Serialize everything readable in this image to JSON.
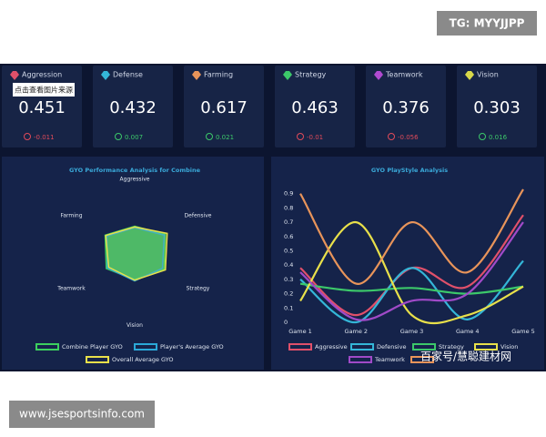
{
  "badge": "TG: MYYJJPP",
  "tooltip": "点击查看图片来源",
  "stats": [
    {
      "name": "Aggression",
      "value": 0.451,
      "delta": -0.011,
      "color": "#e0506a"
    },
    {
      "name": "Defense",
      "value": 0.432,
      "delta": 0.007,
      "color": "#34b6d8"
    },
    {
      "name": "Farming",
      "value": 0.617,
      "delta": 0.021,
      "color": "#e8945a"
    },
    {
      "name": "Strategy",
      "value": 0.463,
      "delta": -0.01,
      "color": "#3cc86a"
    },
    {
      "name": "Teamwork",
      "value": 0.376,
      "delta": -0.056,
      "color": "#b04ad0"
    },
    {
      "name": "Vision",
      "value": 0.303,
      "delta": 0.016,
      "color": "#d8d84a"
    }
  ],
  "chart_data": [
    {
      "type": "radar",
      "title": "GYO Performance Analysis for Combine",
      "categories": [
        "Aggressive",
        "Defensive",
        "Strategy",
        "Vision",
        "Teamwork",
        "Farming"
      ],
      "rlim": [
        0,
        1
      ],
      "series": [
        {
          "name": "Combine Player GYO",
          "color": "#3ccf5e",
          "values": [
            0.38,
            0.52,
            0.5,
            0.4,
            0.48,
            0.5
          ]
        },
        {
          "name": "Player's Average GYO",
          "color": "#2aa8d8",
          "values": [
            0.36,
            0.5,
            0.47,
            0.42,
            0.46,
            0.47
          ]
        },
        {
          "name": "Overall Average GYO",
          "color": "#e8e04a",
          "values": [
            0.37,
            0.55,
            0.52,
            0.41,
            0.44,
            0.49
          ]
        }
      ]
    },
    {
      "type": "line",
      "title": "GYO PlayStyle Analysis",
      "categories": [
        "Game 1",
        "Game 2",
        "Game 3",
        "Game 4",
        "Game 5"
      ],
      "ylim": [
        0,
        1
      ],
      "yticks": [
        0,
        0.1,
        0.2,
        0.3,
        0.4,
        0.5,
        0.6,
        0.7,
        0.8,
        0.9
      ],
      "series": [
        {
          "name": "Aggressive",
          "color": "#e0506a",
          "values": [
            0.38,
            0.05,
            0.38,
            0.25,
            0.75
          ]
        },
        {
          "name": "Defensive",
          "color": "#34b6d8",
          "values": [
            0.3,
            0.0,
            0.38,
            0.02,
            0.43
          ]
        },
        {
          "name": "Strategy",
          "color": "#3cc86a",
          "values": [
            0.27,
            0.22,
            0.24,
            0.2,
            0.25
          ]
        },
        {
          "name": "Vision",
          "color": "#e8e04a",
          "values": [
            0.15,
            0.7,
            0.05,
            0.05,
            0.25
          ]
        },
        {
          "name": "Teamwork",
          "color": "#a04ac8",
          "values": [
            0.35,
            0.02,
            0.15,
            0.2,
            0.7
          ]
        },
        {
          "color": "#e8945a",
          "values": [
            0.9,
            0.27,
            0.7,
            0.35,
            0.93
          ]
        }
      ]
    }
  ],
  "footer": {
    "url": "www.jsesportsinfo.com",
    "watermark": "百家号/慧聪建材网"
  }
}
